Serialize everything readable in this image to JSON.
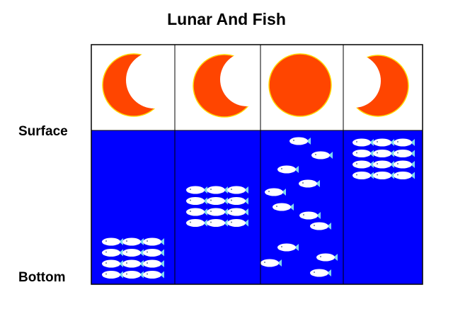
{
  "title": "Lunar And Fish",
  "labels": {
    "surface": "Surface",
    "bottom": "Bottom"
  },
  "colors": {
    "moon": "#ff4500",
    "moon_outline": "#ffd700",
    "water": "#0000ff",
    "sky": "#ffffff",
    "fish": "#ffffff",
    "fish_tail": "#7fd8f0",
    "grid": "#000000"
  },
  "panels": [
    {
      "moon_phase": "crescent",
      "fish_arrangement": "schooled grid",
      "fish_count": 12,
      "fish_depth": "bottom"
    },
    {
      "moon_phase": "crescent",
      "fish_arrangement": "schooled grid",
      "fish_count": 12,
      "fish_depth": "middle"
    },
    {
      "moon_phase": "full",
      "fish_arrangement": "scattered",
      "fish_count": 12,
      "fish_depth": "throughout"
    },
    {
      "moon_phase": "crescent",
      "fish_arrangement": "schooled grid",
      "fish_count": 12,
      "fish_depth": "surface"
    }
  ]
}
